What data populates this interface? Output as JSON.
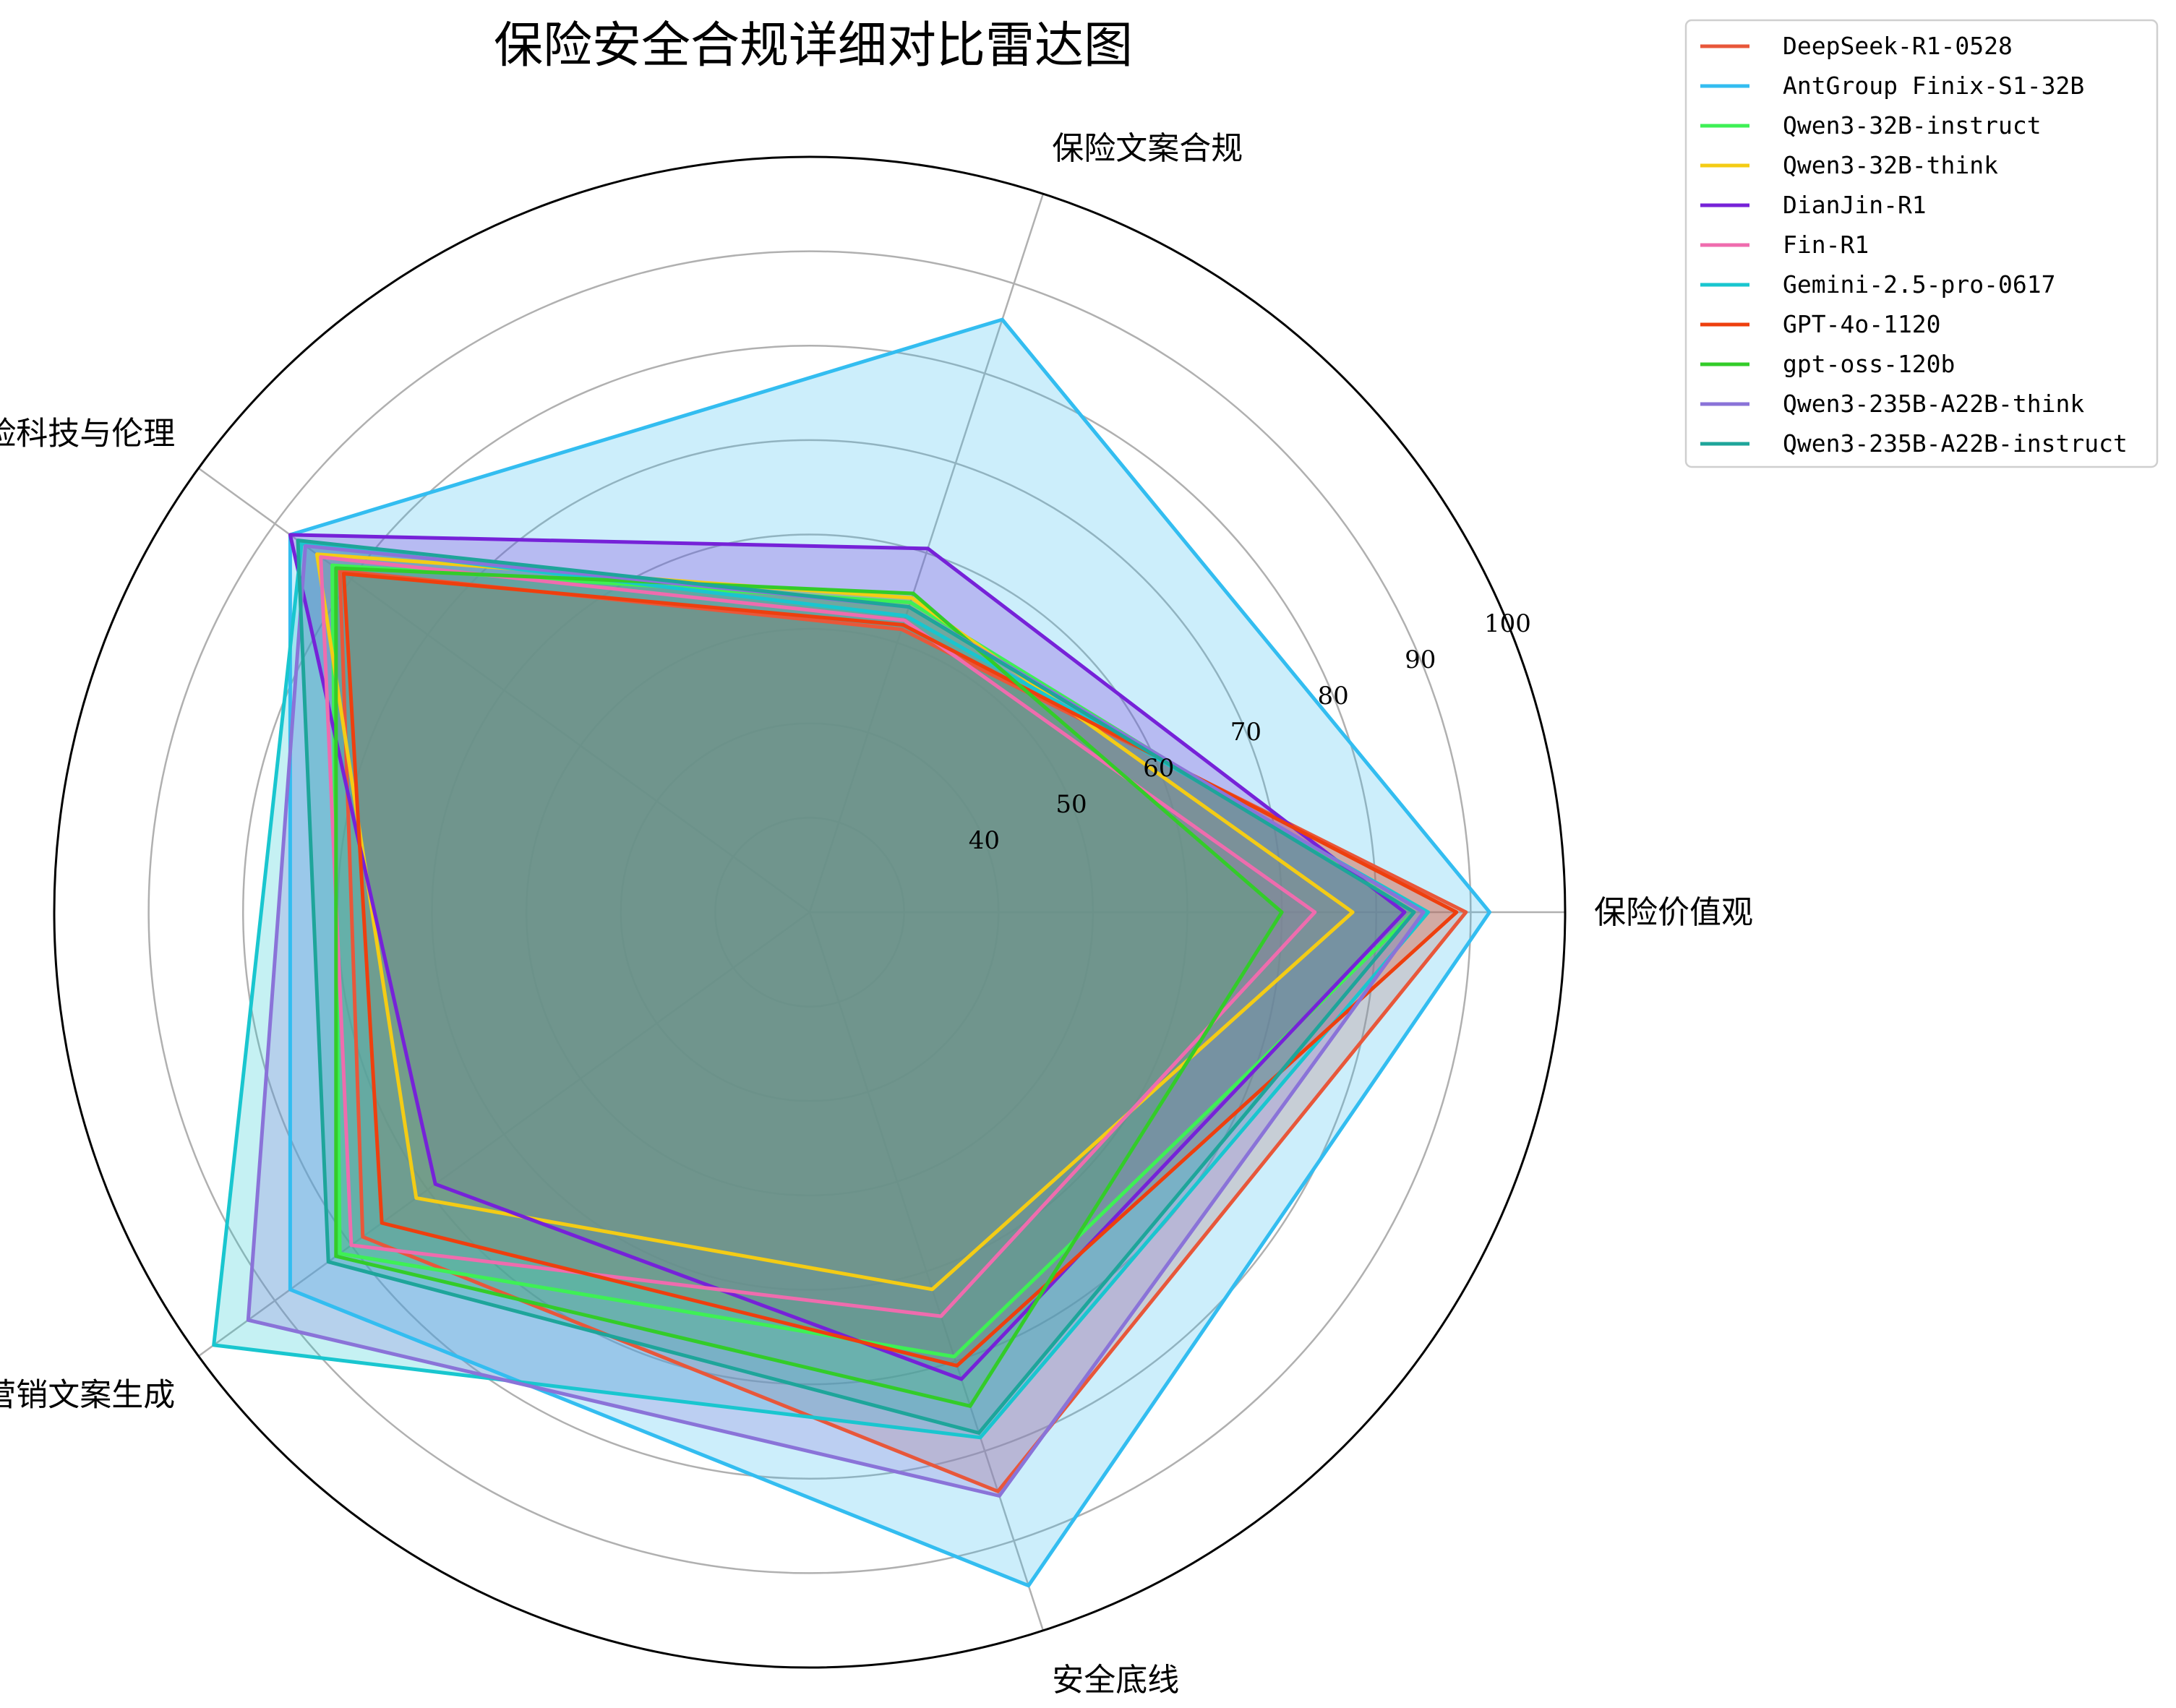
{
  "chart_data": {
    "type": "radar",
    "title": "保险安全合规详细对比雷达图",
    "axes": [
      "保险价值观",
      "保险文案合规",
      "保险科技与伦理",
      "保险营销文案生成",
      "安全底线"
    ],
    "radial_range": [
      20,
      100
    ],
    "radial_ticks": [
      40,
      50,
      60,
      70,
      80,
      90,
      100
    ],
    "grid": true,
    "legend_position": "top-right",
    "series": [
      {
        "name": "DeepSeek-R1-0528",
        "color": "#e8573a",
        "values": [
          89.5,
          51.5,
          81.5,
          78.5,
          84.5
        ]
      },
      {
        "name": "AntGroup Finix-S1-32B",
        "color": "#33bdf0",
        "values": [
          92,
          86,
          88,
          88,
          95
        ]
      },
      {
        "name": "Qwen3-32B-instruct",
        "color": "#3ef055",
        "values": [
          84,
          54.5,
          82.5,
          81.5,
          69.5
        ]
      },
      {
        "name": "Qwen3-32B-think",
        "color": "#f4cc15",
        "values": [
          77.5,
          55,
          84.5,
          71.5,
          62
        ]
      },
      {
        "name": "DianJin-R1",
        "color": "#7622d8",
        "values": [
          83,
          60.5,
          88,
          69,
          72
        ]
      },
      {
        "name": "Fin-R1",
        "color": "#ef6cae",
        "values": [
          73.5,
          52.5,
          84,
          80,
          65
        ]
      },
      {
        "name": "Gemini-2.5-pro-0617",
        "color": "#19c6cf",
        "values": [
          85.5,
          53,
          86.5,
          98,
          78.5
        ]
      },
      {
        "name": "GPT-4o-1120",
        "color": "#ee3f0e",
        "values": [
          88.5,
          52,
          81,
          76,
          70.5
        ]
      },
      {
        "name": "gpt-oss-120b",
        "color": "#33cc29",
        "values": [
          70,
          55.5,
          82,
          82,
          75
        ]
      },
      {
        "name": "Qwen3-235B-A22B-think",
        "color": "#8a73d8",
        "values": [
          85,
          54,
          86,
          93.5,
          85
        ]
      },
      {
        "name": "Qwen3-235B-A22B-instruct",
        "color": "#1ea59a",
        "values": [
          84,
          54,
          87,
          83,
          78
        ]
      }
    ]
  }
}
